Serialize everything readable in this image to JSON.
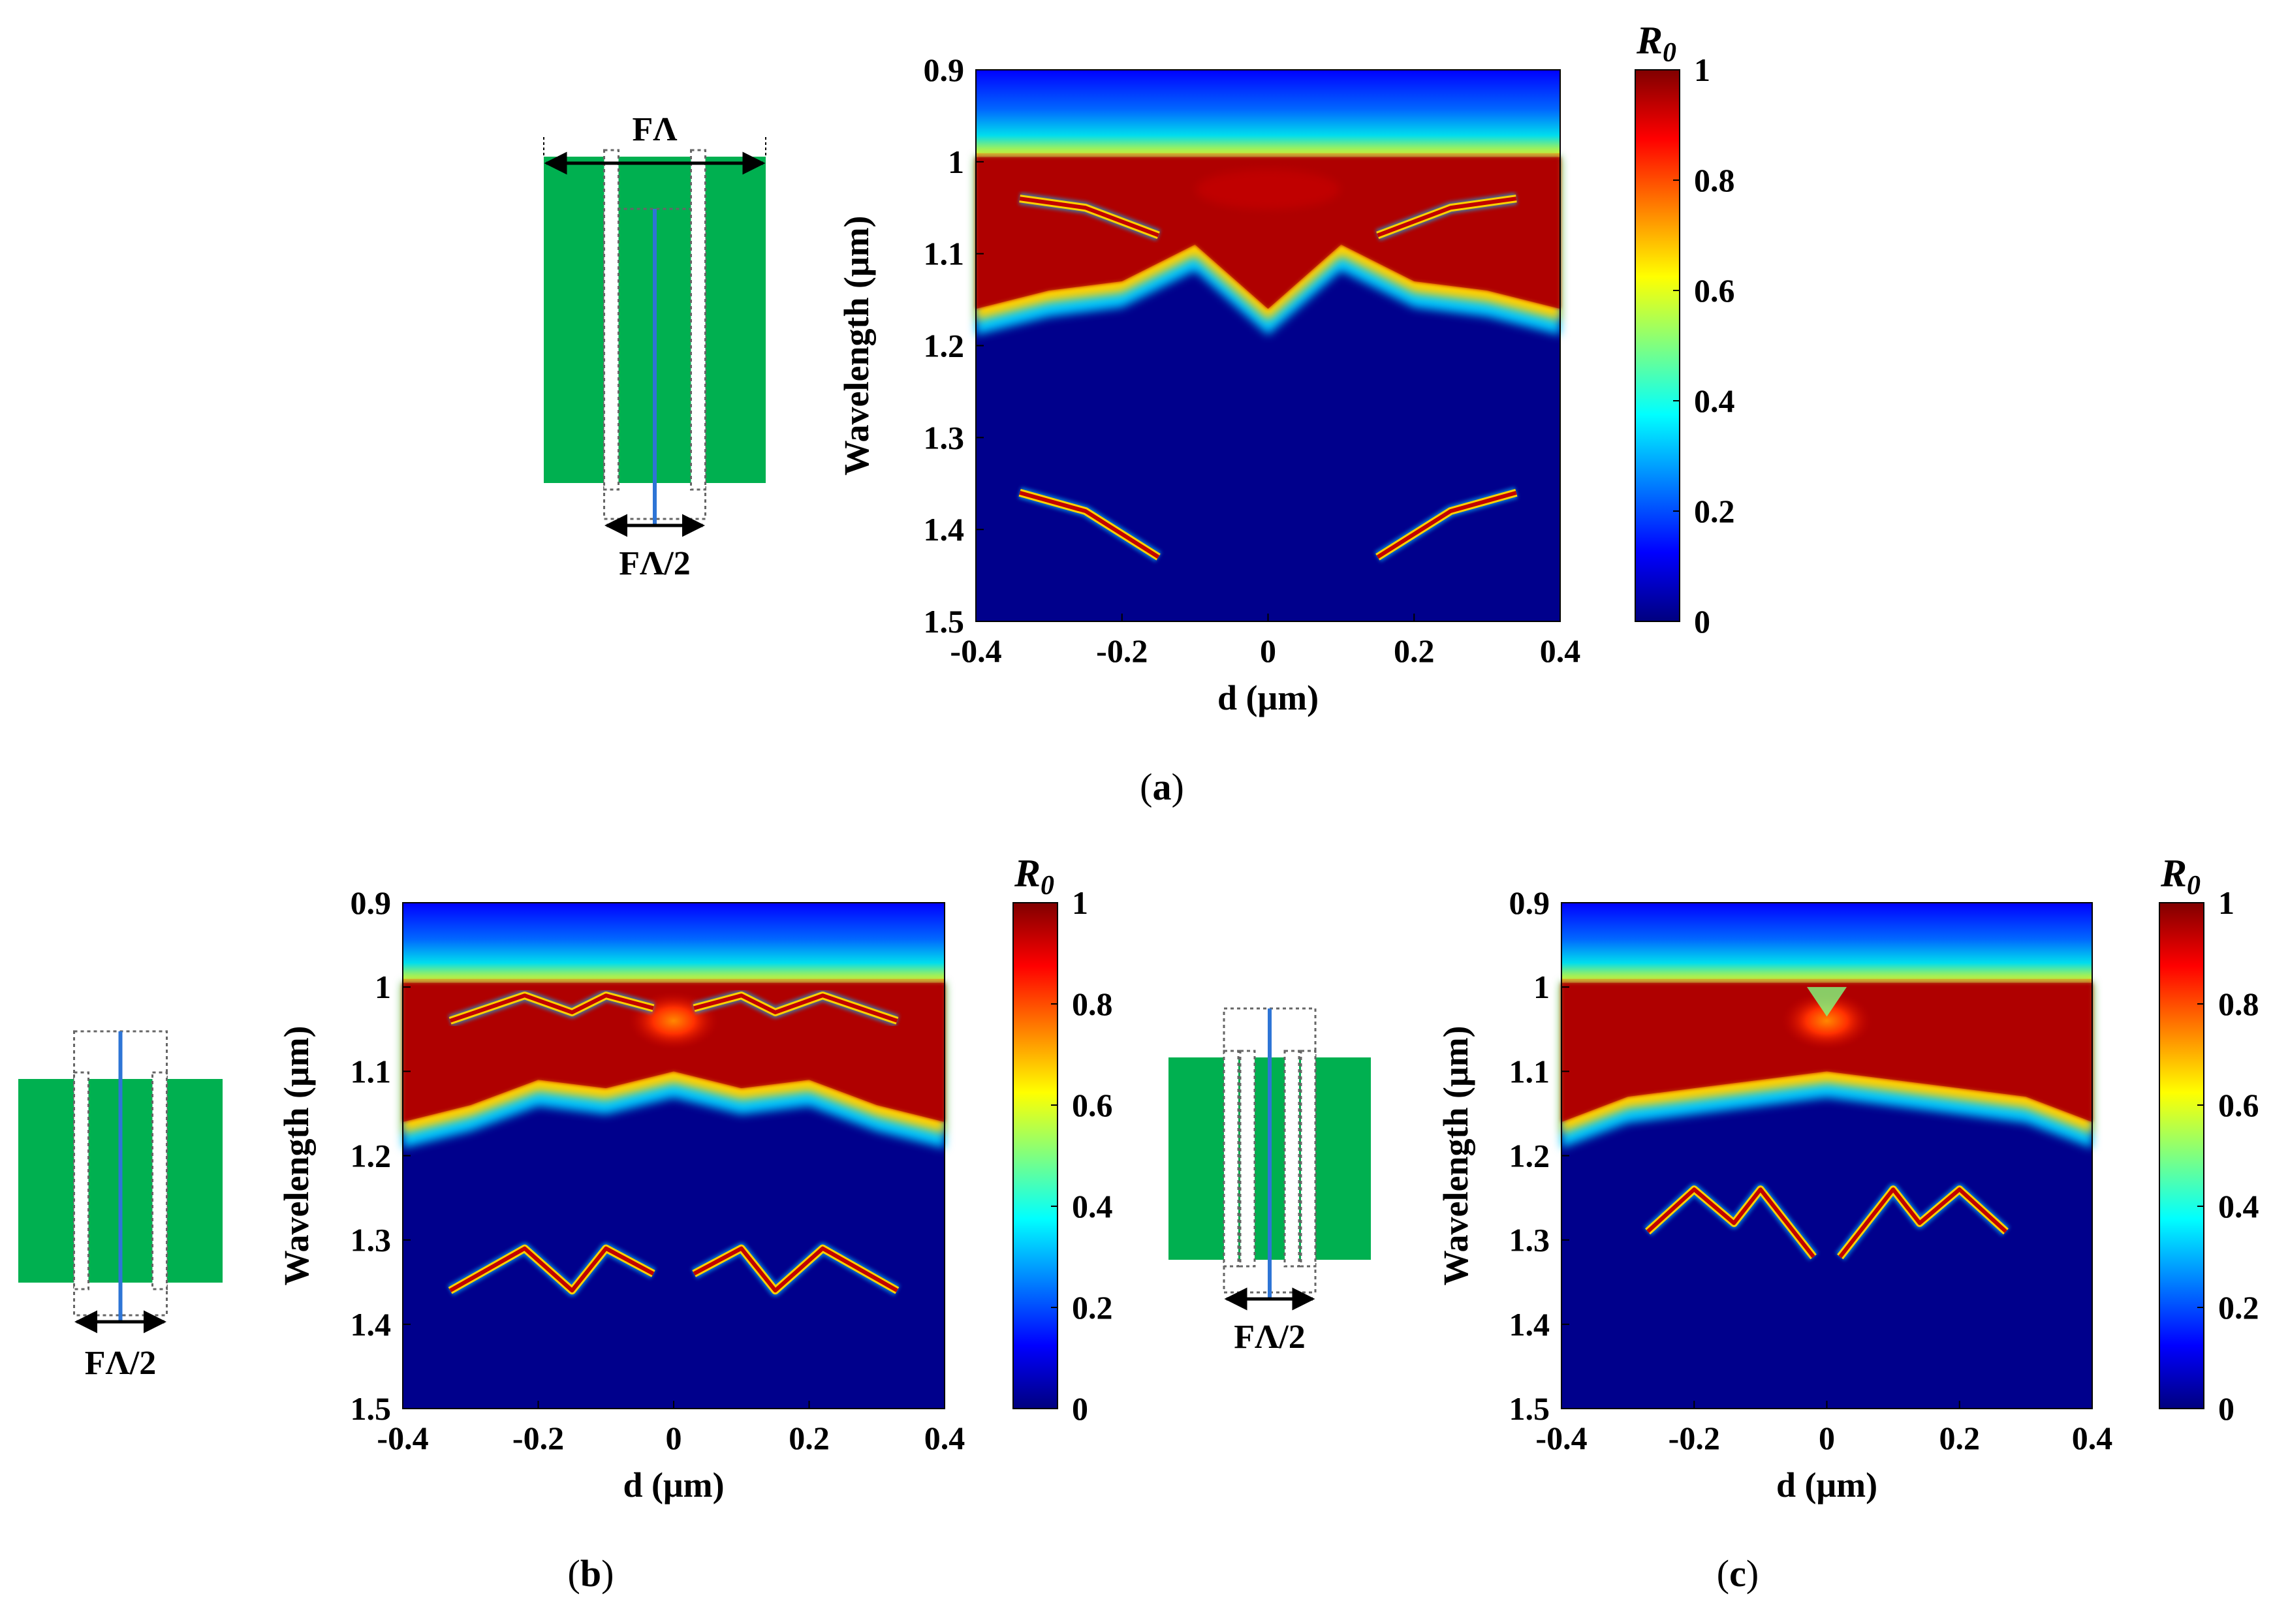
{
  "colors": {
    "structure_green": "#00b050",
    "center_line": "#2e75d6",
    "dotted": "#666666",
    "jet_0": "#00007f",
    "jet_1": "#800000"
  },
  "chart_data": [
    {
      "panel": "a",
      "type": "heatmap",
      "title": "",
      "xlabel": "d (μm)",
      "ylabel": "Wavelength (μm)",
      "xlim": [
        -0.4,
        0.4
      ],
      "ylim": [
        0.9,
        1.5
      ],
      "x_ticks": [
        "-0.4",
        "-0.2",
        "0",
        "0.2",
        "0.4"
      ],
      "y_ticks": [
        "0.9",
        "1",
        "1.1",
        "1.2",
        "1.3",
        "1.4",
        "1.5"
      ],
      "colorbar_label": "R0",
      "colorbar_ticks": [
        "0",
        "0.2",
        "0.4",
        "0.6",
        "0.8",
        "1"
      ],
      "caption": "(a)",
      "band_top_um": 0.995,
      "band_bottom": {
        "x": [
          -0.4,
          -0.3,
          -0.2,
          -0.1,
          0,
          0.1,
          0.2,
          0.3,
          0.4
        ],
        "y": [
          1.16,
          1.14,
          1.13,
          1.09,
          1.16,
          1.09,
          1.13,
          1.14,
          1.16
        ]
      },
      "features": [
        {
          "x": [
            -0.34,
            -0.25,
            -0.15
          ],
          "y": [
            1.04,
            1.05,
            1.08
          ]
        },
        {
          "x": [
            0.15,
            0.25,
            0.34
          ],
          "y": [
            1.08,
            1.05,
            1.04
          ]
        },
        {
          "x": [
            -0.34,
            -0.25,
            -0.15
          ],
          "y": [
            1.36,
            1.38,
            1.43
          ]
        },
        {
          "x": [
            0.15,
            0.25,
            0.34
          ],
          "y": [
            1.43,
            1.38,
            1.36
          ]
        }
      ],
      "inset": {
        "top_label": "FΛ",
        "bottom_label": "FΛ/2",
        "slots": 1
      }
    },
    {
      "panel": "b",
      "type": "heatmap",
      "title": "",
      "xlabel": "d (μm)",
      "ylabel": "Wavelength (μm)",
      "xlim": [
        -0.4,
        0.4
      ],
      "ylim": [
        0.9,
        1.5
      ],
      "x_ticks": [
        "-0.4",
        "-0.2",
        "0",
        "0.2",
        "0.4"
      ],
      "y_ticks": [
        "0.9",
        "1",
        "1.1",
        "1.2",
        "1.3",
        "1.4",
        "1.5"
      ],
      "colorbar_label": "R0",
      "colorbar_ticks": [
        "0",
        "0.2",
        "0.4",
        "0.6",
        "0.8",
        "1"
      ],
      "caption": "(b)",
      "band_top_um": 0.995,
      "band_bottom": {
        "x": [
          -0.4,
          -0.3,
          -0.2,
          -0.1,
          0,
          0.1,
          0.2,
          0.3,
          0.4
        ],
        "y": [
          1.16,
          1.14,
          1.11,
          1.12,
          1.1,
          1.12,
          1.11,
          1.14,
          1.16
        ]
      },
      "features": [
        {
          "x": [
            -0.33,
            -0.22,
            -0.15,
            -0.1,
            -0.03
          ],
          "y": [
            1.04,
            1.01,
            1.03,
            1.01,
            1.025
          ]
        },
        {
          "x": [
            0.03,
            0.1,
            0.15,
            0.22,
            0.33
          ],
          "y": [
            1.025,
            1.01,
            1.03,
            1.01,
            1.04
          ]
        },
        {
          "x": [
            -0.33,
            -0.22,
            -0.15,
            -0.1,
            -0.03
          ],
          "y": [
            1.36,
            1.31,
            1.36,
            1.31,
            1.34
          ]
        },
        {
          "x": [
            0.03,
            0.1,
            0.15,
            0.22,
            0.33
          ],
          "y": [
            1.34,
            1.31,
            1.36,
            1.31,
            1.36
          ]
        }
      ],
      "inset": {
        "top_label": "",
        "bottom_label": "FΛ/2",
        "slots": 1
      }
    },
    {
      "panel": "c",
      "type": "heatmap",
      "title": "",
      "xlabel": "d (μm)",
      "ylabel": "Wavelength (μm)",
      "xlim": [
        -0.4,
        0.4
      ],
      "ylim": [
        0.9,
        1.5
      ],
      "x_ticks": [
        "-0.4",
        "-0.2",
        "0",
        "0.2",
        "0.4"
      ],
      "y_ticks": [
        "0.9",
        "1",
        "1.1",
        "1.2",
        "1.3",
        "1.4",
        "1.5"
      ],
      "colorbar_label": "R0",
      "colorbar_ticks": [
        "0",
        "0.2",
        "0.4",
        "0.6",
        "0.8",
        "1"
      ],
      "caption": "(c)",
      "band_top_um": 0.995,
      "band_bottom": {
        "x": [
          -0.4,
          -0.3,
          -0.2,
          -0.1,
          0,
          0.1,
          0.2,
          0.3,
          0.4
        ],
        "y": [
          1.16,
          1.13,
          1.12,
          1.11,
          1.1,
          1.11,
          1.12,
          1.13,
          1.16
        ]
      },
      "features": [
        {
          "x": [
            -0.27,
            -0.2,
            -0.14,
            -0.1,
            -0.02
          ],
          "y": [
            1.29,
            1.24,
            1.28,
            1.24,
            1.32
          ]
        },
        {
          "x": [
            0.02,
            0.1,
            0.14,
            0.2,
            0.27
          ],
          "y": [
            1.32,
            1.24,
            1.28,
            1.24,
            1.29
          ]
        }
      ],
      "inset": {
        "top_label": "",
        "bottom_label": "FΛ/2",
        "slots": 2
      }
    }
  ]
}
